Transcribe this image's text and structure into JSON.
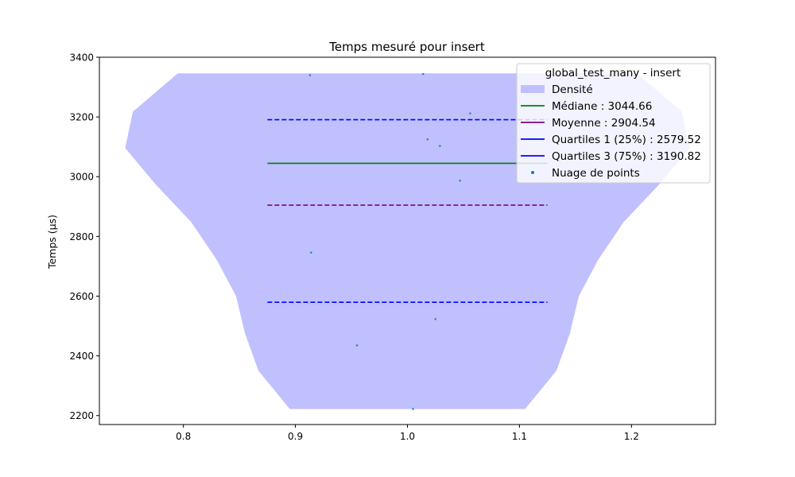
{
  "chart_data": {
    "type": "violin",
    "title": "Temps mesuré pour insert",
    "xlabel": "",
    "ylabel": "Temps (µs)",
    "xlim": [
      0.725,
      1.275
    ],
    "ylim": [
      2170,
      3400
    ],
    "xticks": [
      "0.8",
      "0.9",
      "1.0",
      "1.1",
      "1.2"
    ],
    "yticks": [
      "2200",
      "2400",
      "2600",
      "2800",
      "3000",
      "3200",
      "3400"
    ],
    "grid": false,
    "legend": {
      "title": "global_test_many - insert",
      "placement": "top-right",
      "entries": [
        {
          "label": "Densité",
          "color": "#c0c0ff",
          "style": "patch"
        },
        {
          "label": "Médiane : 3044.66",
          "color": "#008000",
          "style": "solid"
        },
        {
          "label": "Moyenne : 2904.54",
          "color": "#800080",
          "style": "solid"
        },
        {
          "label": "Quartiles 1 (25%) : 2579.52",
          "color": "#0000ff",
          "style": "solid"
        },
        {
          "label": "Quartiles 3 (75%) : 3190.82",
          "color": "#0000ff",
          "style": "solid"
        },
        {
          "label": "Nuage de points",
          "color": "#1f77b4",
          "style": "point"
        }
      ]
    },
    "density": {
      "name": "Densité",
      "color": "#c0c0ff",
      "y": [
        2222,
        2350,
        2475,
        2600,
        2720,
        2848,
        2975,
        3096,
        3218,
        3346
      ],
      "half_width": [
        0.105,
        0.133,
        0.145,
        0.153,
        0.17,
        0.193,
        0.225,
        0.252,
        0.245,
        0.205
      ]
    },
    "lines": [
      {
        "name": "Médiane",
        "value": 3044.66,
        "color": "#008000",
        "dash": "solid",
        "x_range": [
          0.875,
          1.125
        ]
      },
      {
        "name": "Moyenne",
        "value": 2904.54,
        "color": "#800080",
        "dash": "dashed",
        "x_range": [
          0.875,
          1.125
        ]
      },
      {
        "name": "Quartiles 1 (25%)",
        "value": 2579.52,
        "color": "#0000ff",
        "dash": "dashed",
        "x_range": [
          0.875,
          1.125
        ]
      },
      {
        "name": "Quartiles 3 (75%)",
        "value": 3190.82,
        "color": "#0000ff",
        "dash": "dashed",
        "x_range": [
          0.875,
          1.125
        ]
      }
    ],
    "points": {
      "name": "Nuage de points",
      "color": "#1f77b4",
      "x": [
        0.913,
        1.014,
        1.056,
        1.018,
        1.029,
        1.047,
        0.914,
        1.025,
        0.955,
        1.005
      ],
      "y": [
        3340,
        3344,
        3212,
        3125,
        3103,
        2987,
        2746,
        2523,
        2435,
        2222
      ]
    }
  }
}
